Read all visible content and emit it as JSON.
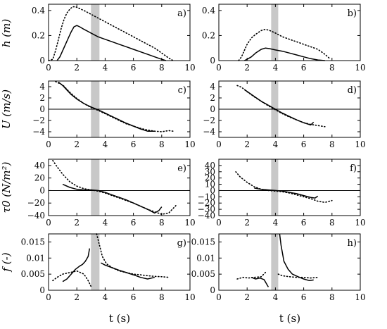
{
  "chart_data": {
    "type": "line",
    "xlabel": "t (s)",
    "xlim": [
      0,
      10
    ],
    "x_ticks": [
      0,
      2,
      4,
      6,
      8,
      10
    ],
    "row_ylabels": [
      "h (m)",
      "U (m/s)",
      "τ0 (N/m²)",
      "f (-)"
    ],
    "panels": [
      {
        "label": "a)",
        "ylim": [
          0,
          0.45
        ],
        "y_ticks": [
          0,
          0.2,
          0.4
        ],
        "y_tick_labels": [
          "0",
          "0.2",
          "0.4"
        ],
        "shaded_band": [
          3.0,
          3.6
        ],
        "zero_line": false,
        "series": [
          {
            "style": "solid",
            "x": [
              0.6,
              0.8,
              1.0,
              1.2,
              1.4,
              1.6,
              1.8,
              2.0,
              2.2,
              2.5,
              3.0,
              3.5,
              4.0,
              4.5,
              5.0,
              5.5,
              6.0,
              6.5,
              7.0,
              7.5,
              8.0,
              8.3
            ],
            "y": [
              0,
              0.03,
              0.08,
              0.13,
              0.18,
              0.23,
              0.27,
              0.28,
              0.27,
              0.25,
              0.22,
              0.19,
              0.17,
              0.15,
              0.13,
              0.11,
              0.09,
              0.07,
              0.05,
              0.03,
              0.01,
              0
            ]
          },
          {
            "style": "dotted",
            "x": [
              0,
              0.3,
              0.5,
              0.7,
              0.9,
              1.1,
              1.3,
              1.5,
              1.7,
              1.9,
              2.1,
              2.5,
              3.0,
              3.5,
              4.0,
              4.5,
              5.0,
              5.5,
              6.0,
              6.5,
              7.0,
              7.5,
              8.0,
              8.5,
              8.8
            ],
            "y": [
              0,
              0.01,
              0.08,
              0.17,
              0.26,
              0.33,
              0.38,
              0.41,
              0.43,
              0.43,
              0.42,
              0.4,
              0.37,
              0.34,
              0.31,
              0.28,
              0.25,
              0.22,
              0.19,
              0.16,
              0.13,
              0.1,
              0.06,
              0.02,
              0
            ]
          }
        ]
      },
      {
        "label": "b)",
        "ylim": [
          0,
          0.45
        ],
        "y_ticks": [
          0,
          0.2,
          0.4
        ],
        "y_tick_labels": [
          "0",
          "0.2",
          "0.4"
        ],
        "shaded_band": [
          3.7,
          4.2
        ],
        "zero_line": false,
        "series": [
          {
            "style": "solid",
            "x": [
              1.8,
              2.0,
              2.3,
              2.6,
              3.0,
              3.3,
              3.6,
              4.0,
              4.5,
              5.0,
              5.5,
              6.0,
              6.5,
              7.0,
              7.5
            ],
            "y": [
              0,
              0.01,
              0.03,
              0.06,
              0.09,
              0.1,
              0.095,
              0.085,
              0.075,
              0.06,
              0.045,
              0.03,
              0.015,
              0.005,
              0
            ]
          },
          {
            "style": "dotted",
            "x": [
              1.4,
              1.6,
              1.8,
              2.0,
              2.3,
              2.6,
              3.0,
              3.3,
              3.6,
              4.0,
              4.5,
              5.0,
              5.5,
              6.0,
              6.5,
              7.0,
              7.5,
              7.8
            ],
            "y": [
              0,
              0.03,
              0.08,
              0.13,
              0.18,
              0.21,
              0.24,
              0.25,
              0.24,
              0.22,
              0.19,
              0.17,
              0.15,
              0.13,
              0.11,
              0.09,
              0.05,
              0.02
            ]
          }
        ]
      },
      {
        "label": "c)",
        "ylim": [
          -5,
          5
        ],
        "y_ticks": [
          -4,
          -2,
          0,
          2,
          4
        ],
        "y_tick_labels": [
          "−4",
          "−2",
          "0",
          "2",
          "4"
        ],
        "shaded_band": [
          3.0,
          3.6
        ],
        "zero_line": true,
        "series": [
          {
            "style": "solid",
            "x": [
              0.7,
              1.0,
              1.3,
              1.6,
              2.0,
              2.5,
              3.0,
              3.5,
              4.0,
              4.5,
              5.0,
              5.5,
              6.0,
              6.5,
              7.0,
              7.5
            ],
            "y": [
              4.8,
              4.2,
              3.4,
              2.6,
              1.8,
              1.0,
              0.4,
              -0.1,
              -0.7,
              -1.3,
              -1.9,
              -2.5,
              -3.0,
              -3.5,
              -3.9,
              -3.9
            ]
          },
          {
            "style": "dotted",
            "x": [
              0.5,
              1.0,
              1.5,
              2.0,
              2.5,
              3.0,
              3.5,
              4.0,
              4.5,
              5.0,
              5.5,
              6.0,
              6.5,
              7.0,
              7.5,
              8.0,
              8.5,
              8.8
            ],
            "y": [
              4.9,
              4.3,
              3.0,
              1.9,
              1.0,
              0.3,
              -0.2,
              -0.8,
              -1.4,
              -2.0,
              -2.6,
              -3.0,
              -3.4,
              -3.7,
              -3.9,
              -4.0,
              -3.8,
              -3.9
            ]
          }
        ]
      },
      {
        "label": "d)",
        "ylim": [
          -5,
          5
        ],
        "y_ticks": [
          -4,
          -2,
          0,
          2,
          4
        ],
        "y_tick_labels": [
          "−4",
          "−2",
          "0",
          "2",
          "4"
        ],
        "shaded_band": [
          3.7,
          4.2
        ],
        "zero_line": true,
        "series": [
          {
            "style": "solid",
            "x": [
              1.8,
              2.2,
              2.6,
              3.0,
              3.5,
              4.0,
              4.5,
              5.0,
              5.5,
              6.0,
              6.5,
              6.7
            ],
            "y": [
              3.5,
              2.8,
              2.1,
              1.4,
              0.7,
              0.0,
              -0.7,
              -1.3,
              -1.9,
              -2.4,
              -2.8,
              -2.3
            ]
          },
          {
            "style": "dotted",
            "x": [
              1.3,
              1.6,
              2.0,
              2.5,
              3.0,
              3.5,
              4.0,
              4.5,
              5.0,
              5.5,
              6.0,
              6.5,
              7.0,
              7.5
            ],
            "y": [
              4.2,
              3.9,
              3.1,
              2.2,
              1.4,
              0.6,
              -0.1,
              -0.8,
              -1.4,
              -1.9,
              -2.4,
              -2.7,
              -2.9,
              -3.1
            ]
          }
        ]
      },
      {
        "label": "e)",
        "ylim": [
          -40,
          50
        ],
        "y_ticks": [
          -40,
          -20,
          0,
          20,
          40
        ],
        "y_tick_labels": [
          "−40",
          "−20",
          "0",
          "20",
          "40"
        ],
        "shaded_band": [
          3.0,
          3.6
        ],
        "zero_line": true,
        "series": [
          {
            "style": "solid",
            "x": [
              1.0,
              1.5,
              2.0,
              2.5,
              3.0,
              3.5,
              4.0,
              4.5,
              5.0,
              5.5,
              6.0,
              6.5,
              7.0,
              7.5,
              7.8,
              8.0
            ],
            "y": [
              10,
              5,
              2,
              1,
              1,
              0,
              -3,
              -7,
              -11,
              -15,
              -20,
              -25,
              -30,
              -36,
              -32,
              -26
            ]
          },
          {
            "style": "dotted",
            "x": [
              0.3,
              0.6,
              1.0,
              1.5,
              2.0,
              2.5,
              3.0,
              3.5,
              4.0,
              4.5,
              5.0,
              5.5,
              6.0,
              6.5,
              7.0,
              7.5,
              8.0,
              8.5,
              9.0
            ],
            "y": [
              48,
              38,
              26,
              14,
              7,
              3,
              1,
              -1,
              -4,
              -8,
              -12,
              -16,
              -20,
              -25,
              -30,
              -34,
              -38,
              -36,
              -24
            ]
          }
        ]
      },
      {
        "label": "f)",
        "ylim": [
          -40,
          50
        ],
        "y_ticks": [
          -40,
          -30,
          -20,
          -10,
          0,
          10,
          20,
          30,
          40
        ],
        "y_tick_labels": [
          "−40",
          "−30",
          "−20",
          "−10",
          "0",
          "10",
          "20",
          "30",
          "40"
        ],
        "shaded_band": [
          3.7,
          4.2
        ],
        "zero_line": true,
        "series": [
          {
            "style": "solid",
            "x": [
              2.5,
              3.0,
              3.5,
              4.0,
              4.5,
              5.0,
              5.5,
              6.0,
              6.5,
              6.8,
              7.0
            ],
            "y": [
              4,
              2,
              1,
              0,
              -1,
              -3,
              -5,
              -8,
              -11,
              -12,
              -9
            ]
          },
          {
            "style": "dotted",
            "x": [
              1.2,
              1.5,
              2.0,
              2.5,
              3.0,
              3.5,
              4.0,
              4.5,
              5.0,
              5.5,
              6.0,
              6.5,
              7.0,
              7.5,
              8.0
            ],
            "y": [
              30,
              22,
              13,
              6,
              2,
              0,
              -1,
              -2,
              -4,
              -7,
              -10,
              -13,
              -17,
              -19,
              -16
            ]
          }
        ]
      },
      {
        "label": "g)",
        "ylim": [
          0,
          0.0175
        ],
        "y_ticks": [
          0,
          0.005,
          0.01,
          0.015
        ],
        "y_tick_labels": [
          "0",
          "0.005",
          "0.01",
          "0.015"
        ],
        "shaded_band": [
          3.0,
          3.6
        ],
        "zero_line": false,
        "series": [
          {
            "style": "solid",
            "x": [
              1.0,
              1.3,
              1.6,
              1.9,
              2.2,
              2.4,
              2.6,
              2.8,
              2.9
            ],
            "y": [
              0.0027,
              0.0035,
              0.005,
              0.0065,
              0.0075,
              0.008,
              0.009,
              0.0105,
              0.013
            ]
          },
          {
            "style": "solid",
            "x": [
              3.7,
              4.0,
              4.5,
              5.0,
              5.5,
              6.0,
              6.5,
              7.0,
              7.5
            ],
            "y": [
              0.0085,
              0.0078,
              0.007,
              0.0062,
              0.0055,
              0.0048,
              0.004,
              0.0035,
              0.004
            ]
          },
          {
            "style": "dotted",
            "x": [
              0.3,
              0.6,
              1.0,
              1.5,
              2.0,
              2.5,
              2.8,
              3.0
            ],
            "y": [
              0.003,
              0.004,
              0.005,
              0.0055,
              0.006,
              0.005,
              0.003,
              0.0012
            ]
          },
          {
            "style": "dotted",
            "x": [
              3.4,
              3.6,
              3.8,
              4.1,
              4.5,
              5.0,
              5.5,
              6.0,
              6.5,
              7.0,
              7.5,
              8.0,
              8.5
            ],
            "y": [
              0.0175,
              0.014,
              0.0105,
              0.0082,
              0.007,
              0.006,
              0.0055,
              0.005,
              0.0048,
              0.0045,
              0.0043,
              0.0042,
              0.004
            ]
          }
        ]
      },
      {
        "label": "h)",
        "ylim": [
          0,
          0.0175
        ],
        "y_ticks": [
          0,
          0.005,
          0.01,
          0.015
        ],
        "y_tick_labels": [
          "0",
          "0.005",
          "0.01",
          "0.015"
        ],
        "shaded_band": [
          3.7,
          4.2
        ],
        "zero_line": false,
        "series": [
          {
            "style": "solid",
            "x": [
              2.3,
              2.6,
              2.9,
              3.2,
              3.5
            ],
            "y": [
              0.004,
              0.0035,
              0.0038,
              0.0033,
              0.001
            ]
          },
          {
            "style": "solid",
            "x": [
              4.3,
              4.4,
              4.6,
              4.9,
              5.2,
              5.6,
              6.0,
              6.4,
              6.7
            ],
            "y": [
              0.0175,
              0.014,
              0.009,
              0.0065,
              0.005,
              0.0042,
              0.0035,
              0.003,
              0.0032
            ]
          },
          {
            "style": "dotted",
            "x": [
              1.3,
              1.7,
              2.1,
              2.5,
              3.0,
              3.4
            ],
            "y": [
              0.0035,
              0.004,
              0.0038,
              0.004,
              0.0042,
              0.006
            ]
          },
          {
            "style": "dotted",
            "x": [
              4.2,
              4.5,
              5.0,
              5.5,
              6.0,
              6.5,
              7.0
            ],
            "y": [
              0.005,
              0.0045,
              0.0042,
              0.004,
              0.004,
              0.0038,
              0.004
            ]
          }
        ]
      }
    ]
  }
}
